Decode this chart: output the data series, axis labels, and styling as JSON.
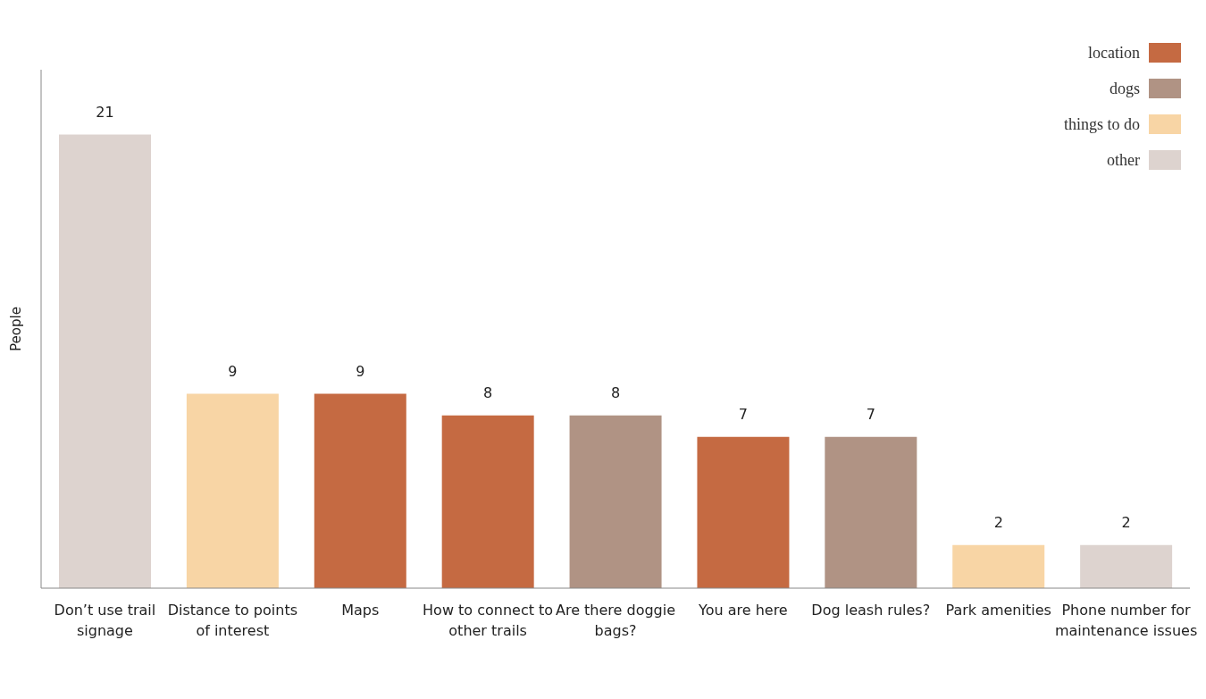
{
  "chart_data": {
    "type": "bar",
    "ylabel": "People",
    "stacked": true,
    "data_labels": true,
    "legend": "top right",
    "grid": false,
    "categories": [
      "Don’t use trail signage",
      "Distance to points of interest",
      "Maps",
      "How to connect to other trails",
      "Are there doggie bags?",
      "You are here",
      "Dog leash rules?",
      "Park amenities",
      "Phone number for maintenance issues"
    ],
    "series": [
      {
        "name": "location",
        "color": "#c56a42",
        "values": [
          null,
          null,
          9,
          8,
          null,
          7,
          null,
          null,
          null
        ]
      },
      {
        "name": "dogs",
        "color": "#b09384",
        "values": [
          null,
          null,
          null,
          null,
          8,
          null,
          7,
          null,
          null
        ]
      },
      {
        "name": "things to do",
        "color": "#f8d5a5",
        "values": [
          null,
          9,
          null,
          null,
          null,
          null,
          null,
          2,
          null
        ]
      },
      {
        "name": "other",
        "color": "#ddd3cf",
        "values": [
          21,
          null,
          null,
          null,
          null,
          null,
          null,
          null,
          2
        ]
      }
    ]
  }
}
